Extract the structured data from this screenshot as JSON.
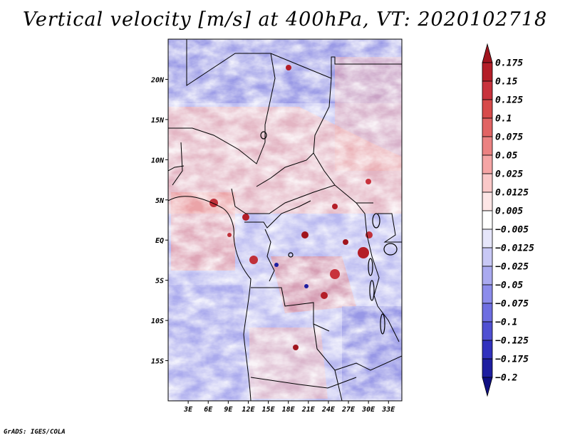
{
  "title": "Vertical velocity [m/s] at 400hPa, VT: 2020102718",
  "footer": "GrADS: IGES/COLA",
  "chart_data": {
    "type": "heatmap",
    "variable": "Vertical velocity",
    "units": "m/s",
    "level": "400hPa",
    "valid_time": "2020102718",
    "x_range": [
      0,
      35
    ],
    "y_range": [
      -20,
      25
    ],
    "x_ticks": [
      {
        "value": 3,
        "label": "3E"
      },
      {
        "value": 6,
        "label": "6E"
      },
      {
        "value": 9,
        "label": "9E"
      },
      {
        "value": 12,
        "label": "12E"
      },
      {
        "value": 15,
        "label": "15E"
      },
      {
        "value": 18,
        "label": "18E"
      },
      {
        "value": 21,
        "label": "21E"
      },
      {
        "value": 24,
        "label": "24E"
      },
      {
        "value": 27,
        "label": "27E"
      },
      {
        "value": 30,
        "label": "30E"
      },
      {
        "value": 33,
        "label": "33E"
      }
    ],
    "y_ticks": [
      {
        "value": 20,
        "label": "20N"
      },
      {
        "value": 15,
        "label": "15N"
      },
      {
        "value": 10,
        "label": "10N"
      },
      {
        "value": 5,
        "label": "5N"
      },
      {
        "value": 0,
        "label": "EQ"
      },
      {
        "value": -5,
        "label": "5S"
      },
      {
        "value": -10,
        "label": "10S"
      },
      {
        "value": -15,
        "label": "15S"
      }
    ],
    "colorbar": {
      "levels": [
        {
          "label": "0.175",
          "value": 0.175
        },
        {
          "label": "0.15",
          "value": 0.15
        },
        {
          "label": "0.125",
          "value": 0.125
        },
        {
          "label": "0.1",
          "value": 0.1
        },
        {
          "label": "0.075",
          "value": 0.075
        },
        {
          "label": "0.05",
          "value": 0.05
        },
        {
          "label": "0.025",
          "value": 0.025
        },
        {
          "label": "0.0125",
          "value": 0.0125
        },
        {
          "label": "0.005",
          "value": 0.005
        },
        {
          "label": "−0.005",
          "value": -0.005
        },
        {
          "label": "−0.0125",
          "value": -0.0125
        },
        {
          "label": "−0.025",
          "value": -0.025
        },
        {
          "label": "−0.05",
          "value": -0.05
        },
        {
          "label": "−0.075",
          "value": -0.075
        },
        {
          "label": "−0.1",
          "value": -0.1
        },
        {
          "label": "−0.125",
          "value": -0.125
        },
        {
          "label": "−0.175",
          "value": -0.175
        },
        {
          "label": "−0.2",
          "value": -0.2
        }
      ],
      "colors": [
        "#a0141e",
        "#b41e28",
        "#c8323c",
        "#d74b4b",
        "#e16464",
        "#eb8282",
        "#f5a5a5",
        "#fac8c8",
        "#fde6e6",
        "#ffffff",
        "#e6e6fa",
        "#c8c8f5",
        "#aaaaf0",
        "#8c8ceb",
        "#6e6ee1",
        "#5050d2",
        "#3232be",
        "#1e1ea0",
        "#0f0f82"
      ]
    }
  }
}
